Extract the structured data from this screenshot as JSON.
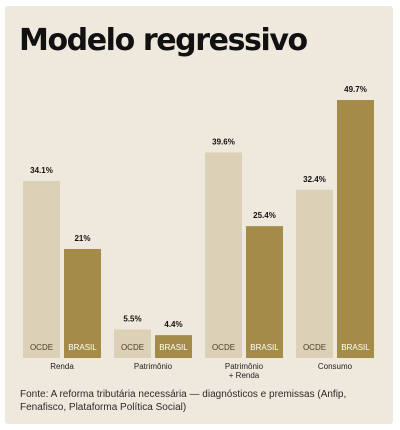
{
  "title": "Modelo regressivo",
  "source": "Fonte: A reforma tributária necessária — diagnósticos e premissas (Anfip, Fenafisco, Plataforma Política Social)",
  "colors": {
    "ocde": "#dcd0b6",
    "brasil": "#a48b48",
    "background": "#efe8dc"
  },
  "chart_data": {
    "type": "bar",
    "title": "Modelo regressivo",
    "categories": [
      "Renda",
      "Patrimônio",
      "Patrimônio + Renda",
      "Consumo"
    ],
    "category_lines": [
      [
        "Renda"
      ],
      [
        "Patrimônio"
      ],
      [
        "Patrimônio",
        "+ Renda"
      ],
      [
        "Consumo"
      ]
    ],
    "series": [
      {
        "name": "OCDE",
        "values": [
          34.1,
          5.5,
          39.6,
          32.4
        ],
        "labels": [
          "34.1%",
          "5.5%",
          "39.6%",
          "32.4%"
        ]
      },
      {
        "name": "BRASIL",
        "values": [
          21,
          4.4,
          25.4,
          49.7
        ],
        "labels": [
          "21%",
          "4.4%",
          "25.4%",
          "49.7%"
        ]
      }
    ],
    "ylim": [
      0,
      49.7
    ],
    "grid": false,
    "legend": "none"
  }
}
